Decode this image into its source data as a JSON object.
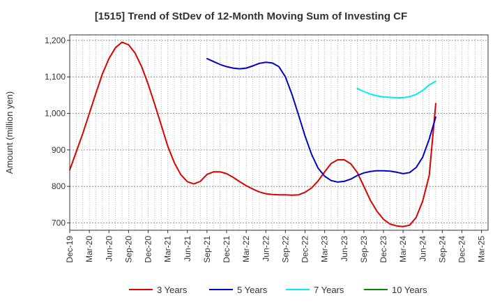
{
  "chart_data": {
    "type": "line",
    "title": "[1515]  Trend of StDev of 12-Month Moving Sum of Investing CF",
    "ylabel": "Amount (million yen)",
    "xlabel": "",
    "ylim": [
      680,
      1215
    ],
    "y_ticks": [
      700,
      800,
      900,
      1000,
      1100,
      1200
    ],
    "y_tick_labels": [
      "700",
      "800",
      "900",
      "1,000",
      "1,100",
      "1,200"
    ],
    "x_tick_labels": [
      "Dec-19",
      "Mar-20",
      "Jun-20",
      "Sep-20",
      "Dec-20",
      "Mar-21",
      "Jun-21",
      "Sep-21",
      "Dec-21",
      "Mar-22",
      "Jun-22",
      "Sep-22",
      "Dec-22",
      "Mar-23",
      "Jun-23",
      "Sep-23",
      "Dec-23",
      "Mar-24",
      "Jun-24",
      "Sep-24",
      "Dec-24",
      "Mar-25"
    ],
    "grid": true,
    "legend_position": "bottom",
    "series": [
      {
        "name": "3 Years",
        "color": "#dd0000",
        "start_index": 0,
        "values": [
          845,
          895,
          945,
          1000,
          1055,
          1108,
          1150,
          1180,
          1195,
          1188,
          1165,
          1128,
          1080,
          1025,
          968,
          910,
          865,
          832,
          813,
          807,
          814,
          833,
          840,
          840,
          835,
          825,
          813,
          802,
          793,
          785,
          780,
          778,
          777,
          777,
          776,
          777,
          784,
          796,
          815,
          840,
          863,
          873,
          873,
          862,
          838,
          800,
          762,
          732,
          710,
          697,
          692,
          690,
          694,
          715,
          760,
          830,
          1027
        ]
      },
      {
        "name": "5 Years",
        "color": "#0000cc",
        "start_index": 21,
        "values": [
          1150,
          1142,
          1134,
          1128,
          1124,
          1122,
          1124,
          1130,
          1137,
          1140,
          1138,
          1128,
          1100,
          1052,
          996,
          938,
          888,
          850,
          828,
          816,
          812,
          814,
          820,
          830,
          837,
          841,
          843,
          843,
          842,
          839,
          835,
          838,
          852,
          880,
          930,
          990
        ]
      },
      {
        "name": "7 Years",
        "color": "#00eeee",
        "start_index": 44,
        "values": [
          1068,
          1060,
          1053,
          1048,
          1045,
          1044,
          1043,
          1043,
          1046,
          1052,
          1063,
          1078,
          1088
        ]
      },
      {
        "name": "10 Years",
        "color": "#008800",
        "start_index": 0,
        "values": []
      }
    ]
  }
}
